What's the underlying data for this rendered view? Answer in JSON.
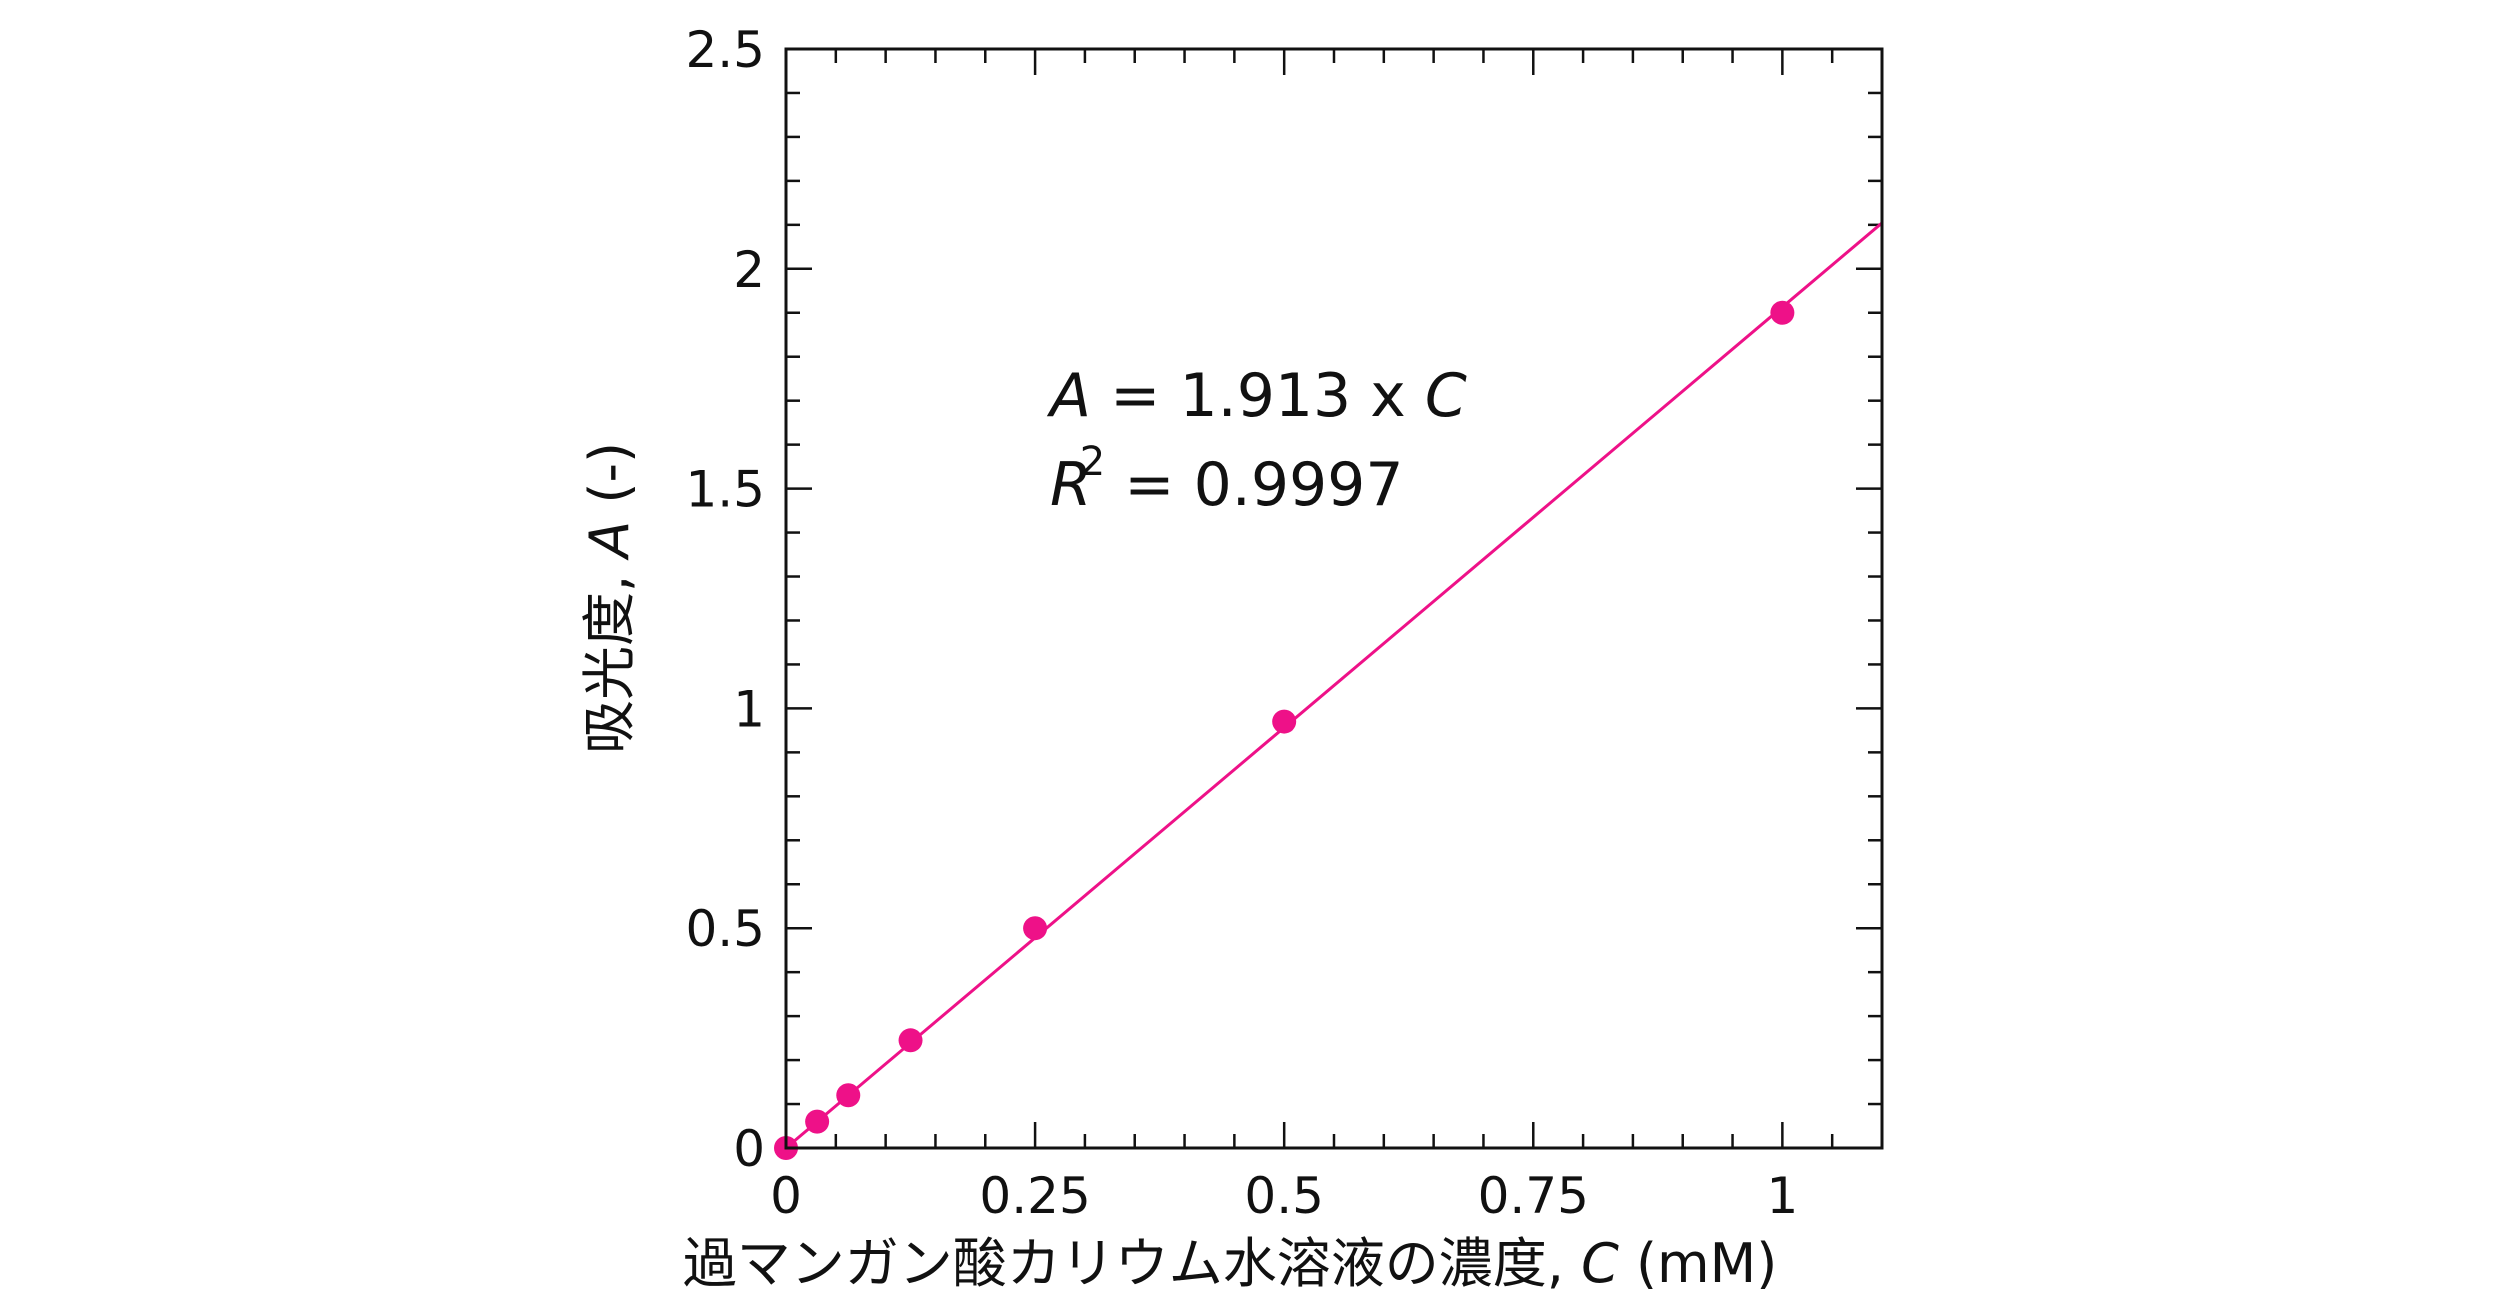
{
  "chart_data": {
    "type": "scatter",
    "title": "",
    "xlabel": "過マンガン酸カリウム水溶液の濃度, C (mM)",
    "xlabel_parts": {
      "prefix": "過マンガン酸カリウム水溶液の濃度, ",
      "var": "C",
      "unit": " (mM)"
    },
    "ylabel": "吸光度, A (-)",
    "ylabel_parts": {
      "prefix": "吸光度, ",
      "var": "A",
      "unit": " (-)"
    },
    "xlim": [
      0,
      1.1
    ],
    "ylim": [
      0,
      2.5
    ],
    "x_ticks": [
      0,
      0.25,
      0.5,
      0.75,
      1
    ],
    "x_tick_labels": [
      "0",
      "0.25",
      "0.5",
      "0.75",
      "1"
    ],
    "y_ticks": [
      0,
      0.5,
      1,
      1.5,
      2,
      2.5
    ],
    "y_tick_labels": [
      "0",
      "0.5",
      "1",
      "1.5",
      "2",
      "2.5"
    ],
    "x_minor_step": 0.05,
    "y_minor_step": 0.1,
    "grid": false,
    "series": [
      {
        "name": "measured",
        "x": [
          0,
          0.03125,
          0.0625,
          0.125,
          0.25,
          0.5,
          1
        ],
        "y": [
          0,
          0.06,
          0.12,
          0.245,
          0.5,
          0.97,
          1.9
        ],
        "color": "#ee1188"
      },
      {
        "name": "fit",
        "type": "line",
        "slope": 1.913,
        "x": [
          0,
          1.1
        ],
        "color": "#ee1188"
      }
    ],
    "annotations": {
      "equation": {
        "var_a": "A",
        "text": " = 1.913 x ",
        "var_c": "C"
      },
      "r2": {
        "var": "R",
        "sup": "2",
        "text": " = 0.9997"
      }
    }
  }
}
